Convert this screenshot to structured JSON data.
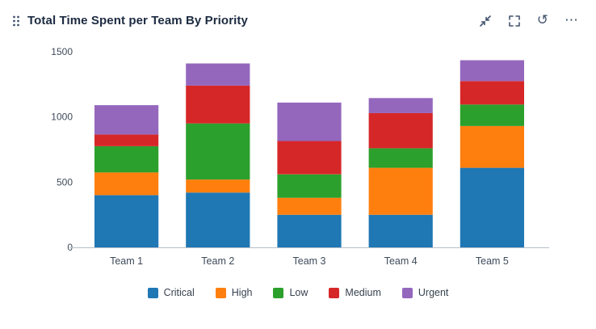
{
  "header": {
    "title": "Total Time Spent per Team By Priority",
    "icons": [
      "drag-handle-icon",
      "collapse-icon",
      "fullscreen-icon",
      "refresh-icon",
      "more-icon"
    ],
    "refresh_glyph": "↺",
    "more_glyph": "⋯",
    "icon_color": "#44546f"
  },
  "chart_data": {
    "type": "bar",
    "stacked": true,
    "title": "Total Time Spent per Team By Priority",
    "categories": [
      "Team 1",
      "Team 2",
      "Team 3",
      "Team 4",
      "Team 5"
    ],
    "series": [
      {
        "name": "Critical",
        "color": "#1f77b4",
        "values": [
          400,
          420,
          250,
          250,
          610
        ]
      },
      {
        "name": "High",
        "color": "#ff7f0e",
        "values": [
          175,
          100,
          130,
          360,
          320
        ]
      },
      {
        "name": "Low",
        "color": "#2ca02c",
        "values": [
          200,
          430,
          180,
          150,
          165
        ]
      },
      {
        "name": "Medium",
        "color": "#d62728",
        "values": [
          90,
          290,
          255,
          270,
          180
        ]
      },
      {
        "name": "Urgent",
        "color": "#9467bd",
        "values": [
          225,
          170,
          295,
          115,
          160
        ]
      }
    ],
    "xlabel": "",
    "ylabel": "",
    "ylim": [
      0,
      1500
    ],
    "yticks": [
      0,
      500,
      1000,
      1500
    ],
    "grid": false,
    "legend_position": "bottom",
    "axis_color": "#b6bfc9",
    "tick_label_color": "#3e4a5a"
  }
}
